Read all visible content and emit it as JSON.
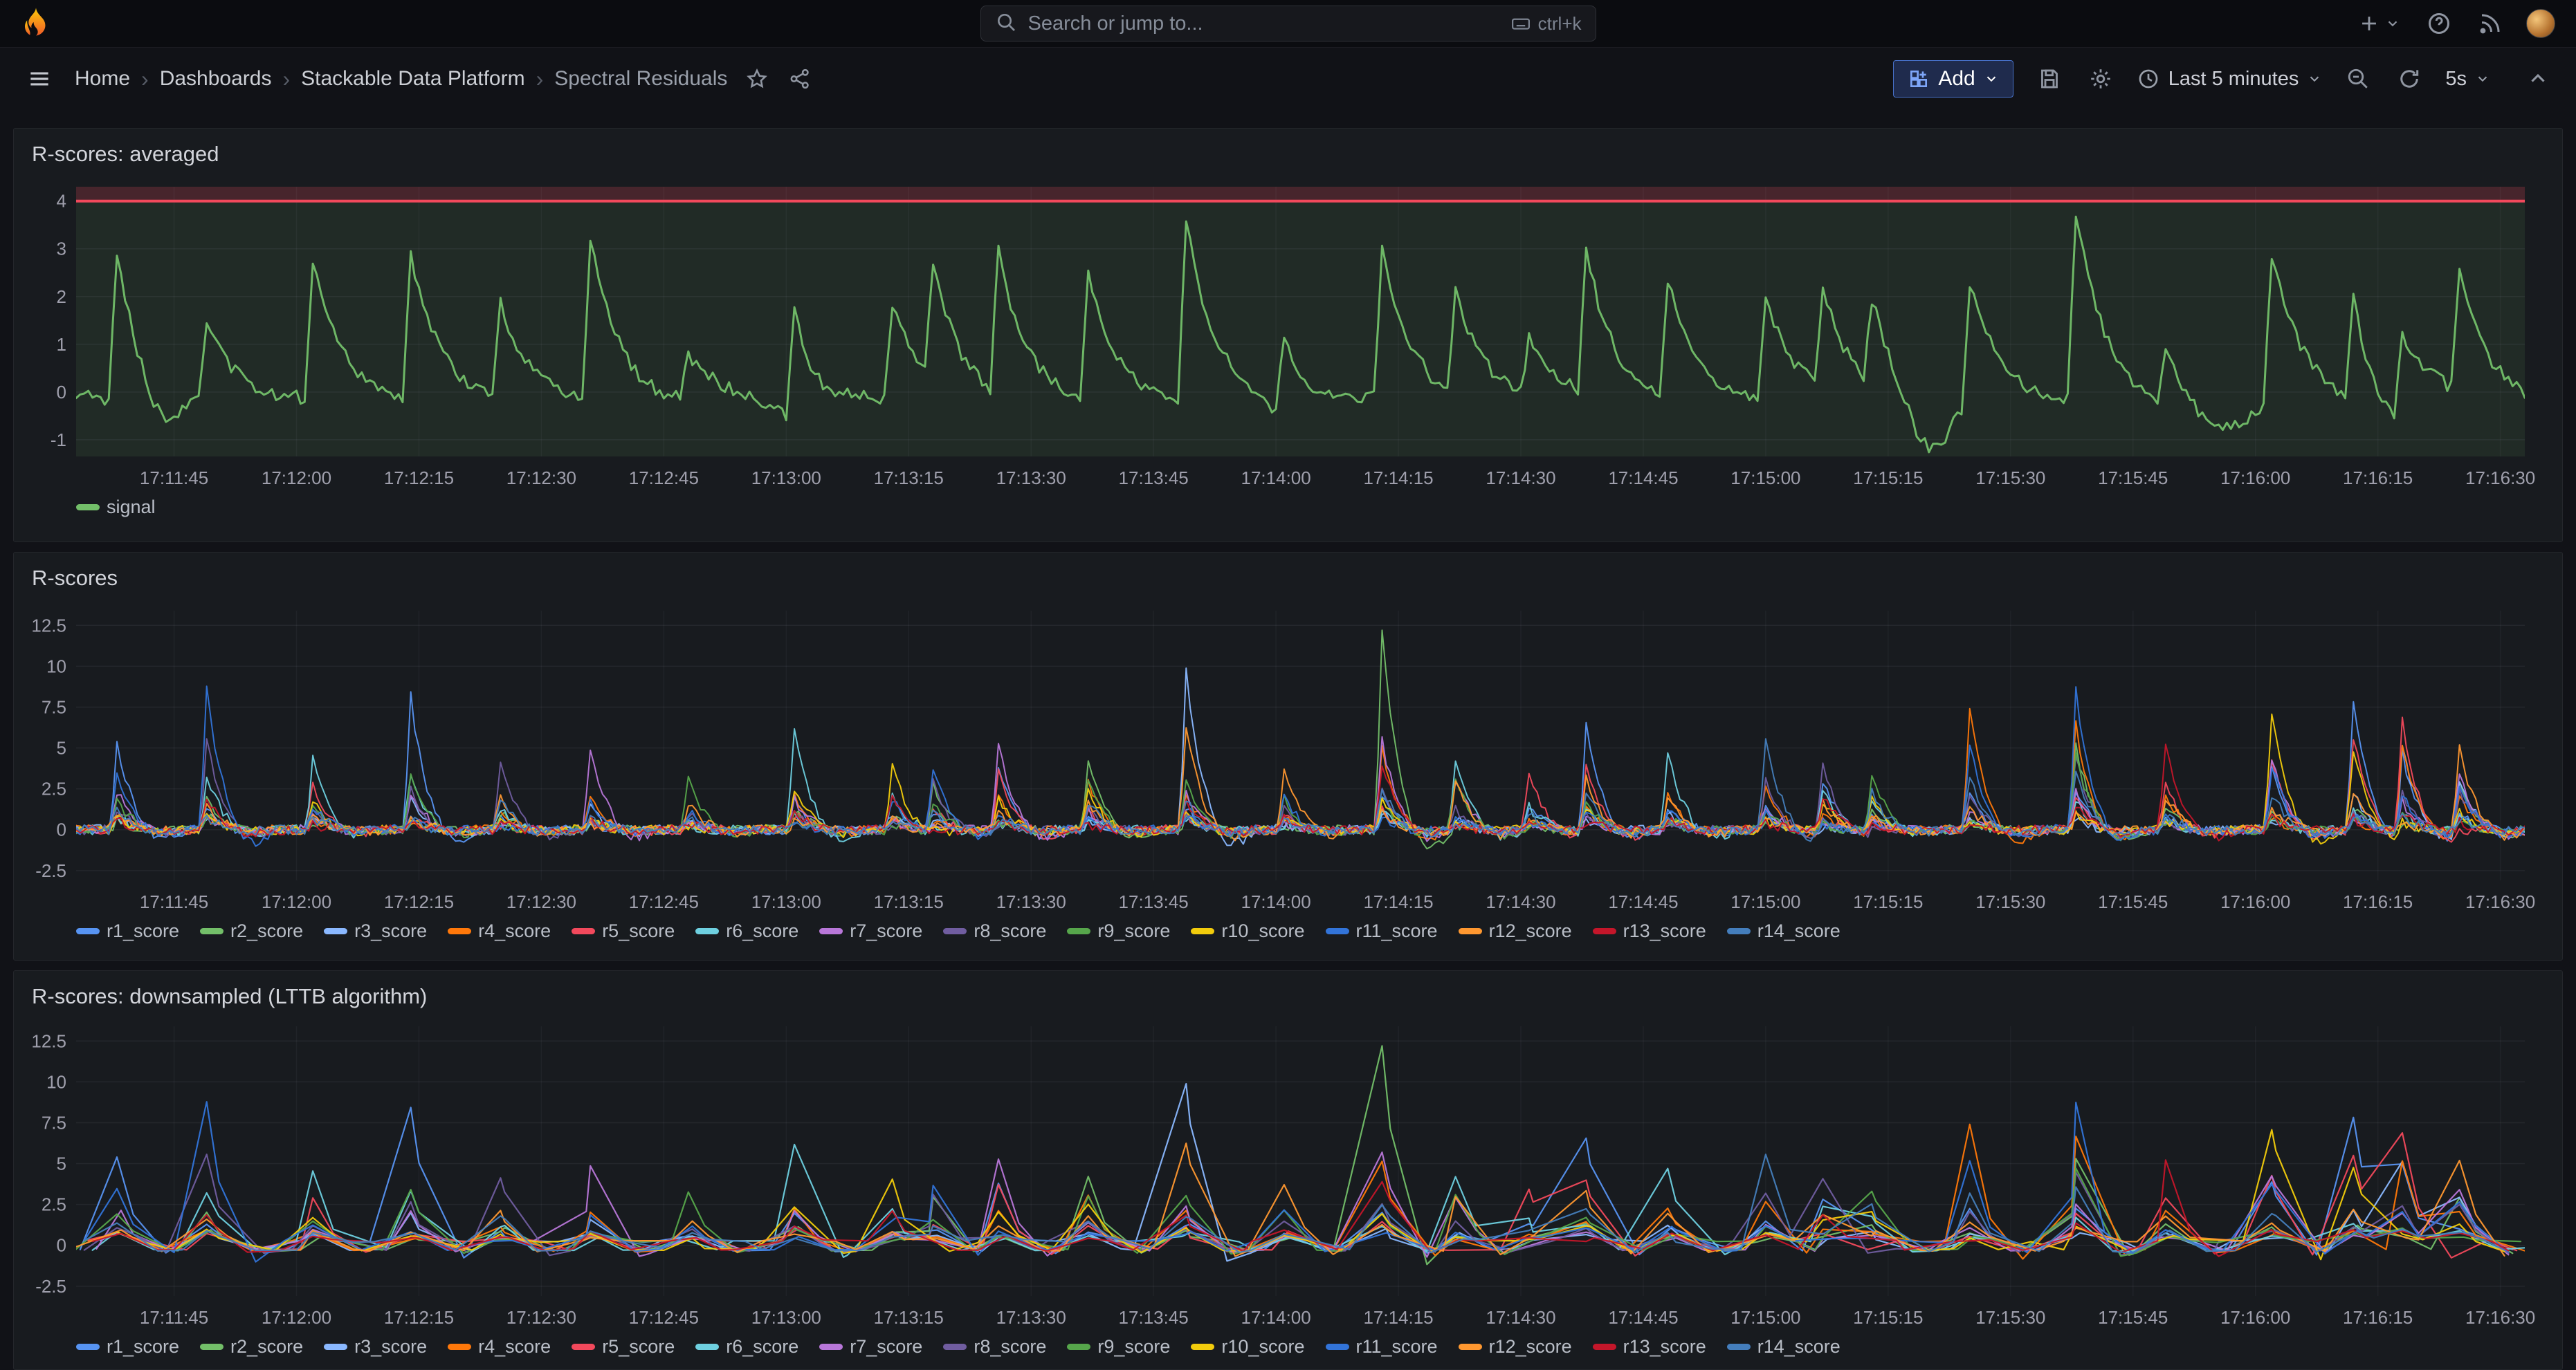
{
  "topbar": {
    "search_placeholder": "Search or jump to...",
    "search_shortcut": "ctrl+k"
  },
  "toolbar": {
    "breadcrumbs": [
      "Home",
      "Dashboards",
      "Stackable Data Platform",
      "Spectral Residuals"
    ],
    "add_label": "Add",
    "time_range_label": "Last 5 minutes",
    "refresh_interval_label": "5s"
  },
  "icons": {
    "logo": "grafana-flame-icon",
    "topbar": [
      "plus-icon",
      "caret-down-icon",
      "help-icon",
      "news-icon",
      "avatar"
    ],
    "toolbar": [
      "menu-icon",
      "star-icon",
      "share-icon",
      "save-icon",
      "gear-icon",
      "clock-icon",
      "zoom-out-icon",
      "refresh-icon",
      "chevron-up-icon"
    ]
  },
  "colors": {
    "page_bg": "#111217",
    "panel_bg": "#181B1F",
    "accent_blue": "#4771c9",
    "threshold_red": "#F2495C",
    "signal_green": "#73BF69"
  },
  "chart_data": [
    {
      "type": "line",
      "title": "R-scores: averaged",
      "time_span_s": 300,
      "x_tick_first_s": 12,
      "x_tick_step_s": 15,
      "x_ticks": [
        "17:11:45",
        "17:12:00",
        "17:12:15",
        "17:12:30",
        "17:12:45",
        "17:13:00",
        "17:13:15",
        "17:13:30",
        "17:13:45",
        "17:14:00",
        "17:14:15",
        "17:14:30",
        "17:14:45",
        "17:15:00",
        "17:15:15",
        "17:15:30",
        "17:15:45",
        "17:16:00",
        "17:16:15",
        "17:16:30"
      ],
      "y_ticks": [
        4,
        3,
        2,
        1,
        0,
        -1
      ],
      "y_range": [
        -1.35,
        4.3
      ],
      "threshold": {
        "value": 4,
        "color": "#F2495C",
        "above_fill": "rgba(242,73,92,0.22)",
        "below_fill": "rgba(115,191,105,0.10)"
      },
      "series": [
        {
          "name": "signal",
          "color": "#73BF69"
        }
      ],
      "events": [
        [
          5,
          3.2
        ],
        [
          16,
          1.6
        ],
        [
          29,
          2.9
        ],
        [
          41,
          3.0
        ],
        [
          52,
          2.0
        ],
        [
          63,
          3.3
        ],
        [
          75,
          0.9
        ],
        [
          88,
          2.5
        ],
        [
          100,
          1.9
        ],
        [
          105,
          2.4
        ],
        [
          113,
          3.0
        ],
        [
          124,
          2.6
        ],
        [
          136,
          3.7
        ],
        [
          148,
          1.8
        ],
        [
          160,
          3.1
        ],
        [
          169,
          2.2
        ],
        [
          178,
          1.2
        ],
        [
          185,
          3.0
        ],
        [
          195,
          2.5
        ],
        [
          207,
          2.1
        ],
        [
          214,
          2.2
        ],
        [
          220,
          1.8
        ],
        [
          232,
          2.6
        ],
        [
          245,
          3.9
        ],
        [
          256,
          1.4
        ],
        [
          269,
          3.2
        ],
        [
          279,
          2.3
        ],
        [
          285,
          1.6
        ],
        [
          292,
          2.5
        ]
      ],
      "dips": [
        [
          10,
          0.9,
          2.5
        ],
        [
          90,
          0.7,
          3
        ],
        [
          150,
          0.5,
          3
        ],
        [
          227,
          1.2,
          2.5
        ],
        [
          262,
          0.8,
          4
        ],
        [
          283,
          0.9,
          2.5
        ]
      ],
      "base": -0.1,
      "noise": 0.14,
      "rise": 1.0,
      "decay": 3.5,
      "undershoot": 0.06,
      "dt": 0.5,
      "downsample": 1,
      "seed": 3
    },
    {
      "type": "line",
      "title": "R-scores",
      "time_span_s": 300,
      "x_tick_first_s": 12,
      "x_tick_step_s": 15,
      "x_ticks": [
        "17:11:45",
        "17:12:00",
        "17:12:15",
        "17:12:30",
        "17:12:45",
        "17:13:00",
        "17:13:15",
        "17:13:30",
        "17:13:45",
        "17:14:00",
        "17:14:15",
        "17:14:30",
        "17:14:45",
        "17:15:00",
        "17:15:15",
        "17:15:30",
        "17:15:45",
        "17:16:00",
        "17:16:15",
        "17:16:30"
      ],
      "y_ticks": [
        12.5,
        10,
        7.5,
        5,
        2.5,
        0,
        -2.5
      ],
      "y_range": [
        -3.1,
        13.4
      ],
      "series": [
        {
          "name": "r1_score",
          "color": "#5794F2"
        },
        {
          "name": "r2_score",
          "color": "#73BF69"
        },
        {
          "name": "r3_score",
          "color": "#8AB8FF"
        },
        {
          "name": "r4_score",
          "color": "#FF780A"
        },
        {
          "name": "r5_score",
          "color": "#F2495C"
        },
        {
          "name": "r6_score",
          "color": "#6ED0E0"
        },
        {
          "name": "r7_score",
          "color": "#B877D9"
        },
        {
          "name": "r8_score",
          "color": "#705DA0"
        },
        {
          "name": "r9_score",
          "color": "#56A64B"
        },
        {
          "name": "r10_score",
          "color": "#F2CC0C"
        },
        {
          "name": "r11_score",
          "color": "#3274D9"
        },
        {
          "name": "r12_score",
          "color": "#FF9830"
        },
        {
          "name": "r13_score",
          "color": "#C4162A"
        },
        {
          "name": "r14_score",
          "color": "#447EBC"
        }
      ],
      "events": [
        [
          5,
          5.5
        ],
        [
          16,
          8.8
        ],
        [
          29,
          4.5
        ],
        [
          41,
          8.2
        ],
        [
          52,
          4.0
        ],
        [
          63,
          5.0
        ],
        [
          75,
          3.0
        ],
        [
          88,
          6.3
        ],
        [
          100,
          4.2
        ],
        [
          105,
          4.0
        ],
        [
          113,
          5.5
        ],
        [
          124,
          4.5
        ],
        [
          136,
          10.0
        ],
        [
          148,
          4.0
        ],
        [
          160,
          12.3
        ],
        [
          169,
          4.3
        ],
        [
          178,
          3.5
        ],
        [
          185,
          6.5
        ],
        [
          195,
          4.8
        ],
        [
          207,
          5.6
        ],
        [
          214,
          4.2
        ],
        [
          220,
          3.6
        ],
        [
          232,
          7.5
        ],
        [
          245,
          8.6
        ],
        [
          256,
          5.5
        ],
        [
          269,
          7.2
        ],
        [
          279,
          8.0
        ],
        [
          285,
          7.4
        ],
        [
          292,
          5.2
        ]
      ],
      "event_owners": [
        0,
        10,
        5,
        0,
        7,
        6,
        8,
        5,
        9,
        10,
        6,
        1,
        2,
        11,
        1,
        5,
        4,
        0,
        5,
        13,
        7,
        8,
        3,
        10,
        12,
        9,
        0,
        4,
        11
      ],
      "base": 0.0,
      "noise": 0.3,
      "rise": 0.8,
      "decay": 2.0,
      "undershoot": 0.15,
      "dt": 0.5,
      "downsample": 1,
      "seed": 11
    },
    {
      "type": "line",
      "title": "R-scores: downsampled (LTTB algorithm)",
      "time_span_s": 300,
      "x_tick_first_s": 12,
      "x_tick_step_s": 15,
      "x_ticks": [
        "17:11:45",
        "17:12:00",
        "17:12:15",
        "17:12:30",
        "17:12:45",
        "17:13:00",
        "17:13:15",
        "17:13:30",
        "17:13:45",
        "17:14:00",
        "17:14:15",
        "17:14:30",
        "17:14:45",
        "17:15:00",
        "17:15:15",
        "17:15:30",
        "17:15:45",
        "17:16:00",
        "17:16:15",
        "17:16:30"
      ],
      "y_ticks": [
        12.5,
        10,
        7.5,
        5,
        2.5,
        0,
        -2.5
      ],
      "y_range": [
        -3.1,
        13.4
      ],
      "series": [
        {
          "name": "r1_score",
          "color": "#5794F2"
        },
        {
          "name": "r2_score",
          "color": "#73BF69"
        },
        {
          "name": "r3_score",
          "color": "#8AB8FF"
        },
        {
          "name": "r4_score",
          "color": "#FF780A"
        },
        {
          "name": "r5_score",
          "color": "#F2495C"
        },
        {
          "name": "r6_score",
          "color": "#6ED0E0"
        },
        {
          "name": "r7_score",
          "color": "#B877D9"
        },
        {
          "name": "r8_score",
          "color": "#705DA0"
        },
        {
          "name": "r9_score",
          "color": "#56A64B"
        },
        {
          "name": "r10_score",
          "color": "#F2CC0C"
        },
        {
          "name": "r11_score",
          "color": "#3274D9"
        },
        {
          "name": "r12_score",
          "color": "#FF9830"
        },
        {
          "name": "r13_score",
          "color": "#C4162A"
        },
        {
          "name": "r14_score",
          "color": "#447EBC"
        }
      ],
      "events": [
        [
          5,
          5.5
        ],
        [
          16,
          8.8
        ],
        [
          29,
          4.5
        ],
        [
          41,
          8.2
        ],
        [
          52,
          4.0
        ],
        [
          63,
          5.0
        ],
        [
          75,
          3.0
        ],
        [
          88,
          6.3
        ],
        [
          100,
          4.2
        ],
        [
          105,
          4.0
        ],
        [
          113,
          5.5
        ],
        [
          124,
          4.5
        ],
        [
          136,
          10.0
        ],
        [
          148,
          4.0
        ],
        [
          160,
          12.3
        ],
        [
          169,
          4.3
        ],
        [
          178,
          3.5
        ],
        [
          185,
          6.5
        ],
        [
          195,
          4.8
        ],
        [
          207,
          5.6
        ],
        [
          214,
          4.2
        ],
        [
          220,
          3.6
        ],
        [
          232,
          7.5
        ],
        [
          245,
          8.6
        ],
        [
          256,
          5.5
        ],
        [
          269,
          7.2
        ],
        [
          279,
          8.0
        ],
        [
          285,
          7.4
        ],
        [
          292,
          5.2
        ]
      ],
      "event_owners": [
        0,
        10,
        5,
        0,
        7,
        6,
        8,
        5,
        9,
        10,
        6,
        1,
        2,
        11,
        1,
        5,
        4,
        0,
        5,
        13,
        7,
        8,
        3,
        10,
        12,
        9,
        0,
        4,
        11
      ],
      "base": 0.0,
      "noise": 0.3,
      "rise": 0.8,
      "decay": 2.0,
      "undershoot": 0.15,
      "dt": 0.5,
      "downsample": 7,
      "seed": 11
    }
  ]
}
